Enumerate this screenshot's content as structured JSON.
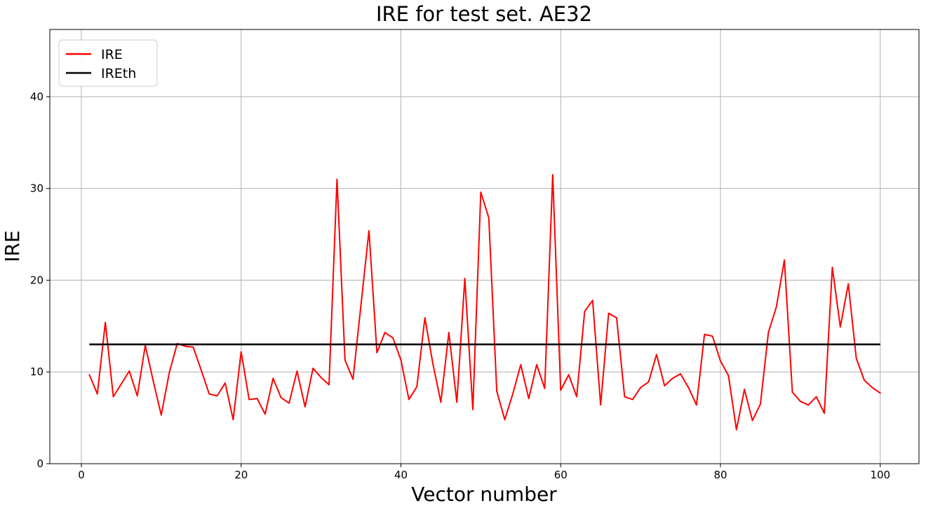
{
  "chart_data": {
    "type": "line",
    "title": "IRE for test set. AE32",
    "xlabel": "Vector number",
    "ylabel": "IRE",
    "grid": true,
    "legend_position": "upper left",
    "xlim": [
      -3.95,
      104.85
    ],
    "ylim": [
      0,
      47.33
    ],
    "xticks": [
      0,
      20,
      40,
      60,
      80,
      100
    ],
    "yticks": [
      0,
      10,
      20,
      30,
      40
    ],
    "x_start": 1,
    "series": [
      {
        "name": "IRE",
        "color": "#ff0000",
        "values": [
          9.7,
          7.6,
          15.4,
          7.3,
          8.7,
          10.1,
          7.4,
          12.9,
          9.0,
          5.3,
          9.9,
          13.1,
          12.8,
          12.7,
          10.2,
          7.6,
          7.4,
          8.8,
          4.8,
          12.2,
          7.0,
          7.1,
          5.4,
          9.3,
          7.2,
          6.6,
          10.1,
          6.2,
          10.4,
          9.4,
          8.6,
          31.0,
          11.3,
          9.2,
          17.3,
          25.4,
          12.1,
          14.3,
          13.7,
          11.3,
          7.0,
          8.4,
          15.9,
          10.9,
          6.7,
          14.3,
          6.7,
          20.2,
          5.9,
          29.6,
          26.8,
          7.9,
          4.8,
          7.6,
          10.8,
          7.1,
          10.8,
          8.2,
          31.5,
          8.0,
          9.7,
          7.3,
          16.6,
          17.8,
          6.4,
          16.4,
          15.9,
          7.3,
          7.0,
          8.3,
          8.9,
          11.9,
          8.5,
          9.3,
          9.8,
          8.3,
          6.4,
          14.1,
          13.9,
          11.2,
          9.6,
          3.7,
          8.1,
          4.7,
          6.5,
          14.3,
          17.1,
          22.2,
          7.8,
          6.8,
          6.4,
          7.3,
          5.5,
          21.4,
          14.9,
          19.6,
          11.5,
          9.1,
          8.3,
          7.7
        ]
      },
      {
        "name": "IREth",
        "color": "#000000",
        "threshold": 13.0,
        "x_range": [
          1,
          100
        ]
      }
    ]
  },
  "legend": {
    "items": [
      {
        "label": "IRE",
        "color": "#ff0000"
      },
      {
        "label": "IREth",
        "color": "#000000"
      }
    ]
  },
  "colors": {
    "ire_line": "#ff0000",
    "ireth_line": "#000000",
    "grid": "#b0b0b0",
    "spine": "#000000",
    "legend_border": "#cccccc",
    "background": "#ffffff"
  }
}
